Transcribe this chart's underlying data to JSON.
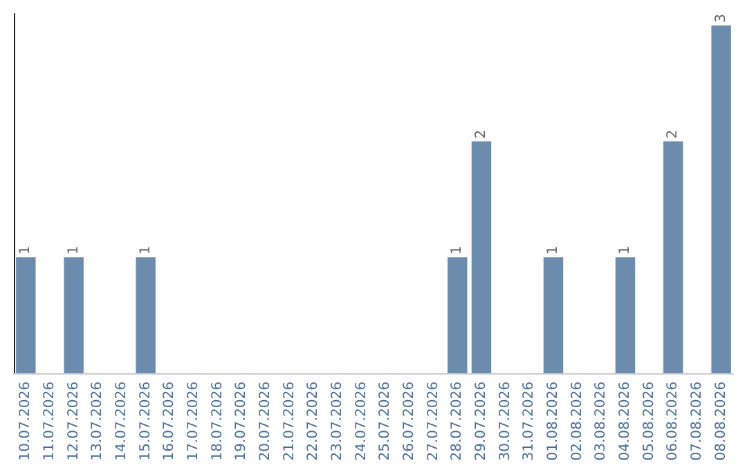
{
  "chart_data": {
    "type": "bar",
    "categories": [
      "10.07.2026",
      "11.07.2026",
      "12.07.2026",
      "13.07.2026",
      "14.07.2026",
      "15.07.2026",
      "16.07.2026",
      "17.07.2026",
      "18.07.2026",
      "19.07.2026",
      "20.07.2026",
      "21.07.2026",
      "22.07.2026",
      "23.07.2026",
      "24.07.2026",
      "25.07.2026",
      "26.07.2026",
      "27.07.2026",
      "28.07.2026",
      "29.07.2026",
      "30.07.2026",
      "31.07.2026",
      "01.08.2026",
      "02.08.2026",
      "03.08.2026",
      "04.08.2026",
      "05.08.2026",
      "06.08.2026",
      "07.08.2026",
      "08.08.2026"
    ],
    "values": [
      1,
      0,
      1,
      0,
      0,
      1,
      0,
      0,
      0,
      0,
      0,
      0,
      0,
      0,
      0,
      0,
      0,
      0,
      1,
      2,
      0,
      0,
      1,
      0,
      0,
      1,
      0,
      2,
      0,
      3
    ],
    "value_labels": [
      "1",
      null,
      "1",
      null,
      null,
      "1",
      null,
      null,
      null,
      null,
      null,
      null,
      null,
      null,
      null,
      null,
      null,
      null,
      "1",
      "2",
      null,
      null,
      "1",
      null,
      null,
      "1",
      null,
      "2",
      null,
      "3"
    ],
    "color": "#6b8cad",
    "ylim": [
      0,
      3.1
    ],
    "tick_labels": "x"
  }
}
